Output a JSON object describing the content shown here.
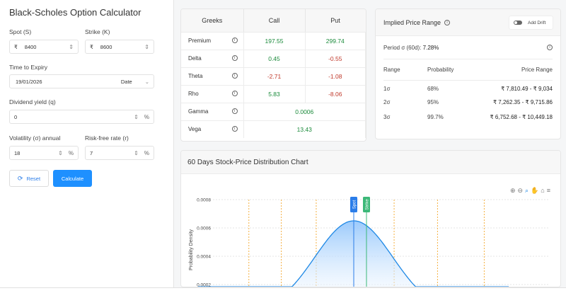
{
  "calculator": {
    "title": "Black-Scholes Option Calculator",
    "spot": {
      "label": "Spot (S)",
      "currency": "₹",
      "value": "8400"
    },
    "strike": {
      "label": "Strike (K)",
      "currency": "₹",
      "value": "8600"
    },
    "expiry": {
      "label": "Time to Expiry",
      "value": "19/01/2026",
      "mode": "Date"
    },
    "dividend": {
      "label": "Dividend yield (q)",
      "value": "0",
      "unit": "%"
    },
    "volatility": {
      "label": "Volatility (σ) annual",
      "value": "18",
      "unit": "%"
    },
    "rate": {
      "label": "Risk-free rate (r)",
      "value": "7",
      "unit": "%"
    },
    "reset_label": "Reset",
    "calculate_label": "Calculate"
  },
  "greeks": {
    "headers": [
      "Greeks",
      "Call",
      "Put"
    ],
    "rows": [
      {
        "name": "Premium",
        "call": "197.55",
        "put": "299.74"
      },
      {
        "name": "Delta",
        "call": "0.45",
        "put": "-0.55"
      },
      {
        "name": "Theta",
        "call": "-2.71",
        "put": "-1.08"
      },
      {
        "name": "Rho",
        "call": "5.83",
        "put": "-8.06"
      },
      {
        "name": "Gamma",
        "both": "0.0006"
      },
      {
        "name": "Vega",
        "both": "13.43"
      }
    ]
  },
  "implied_range": {
    "title": "Implied Price Range",
    "drift_label": "Add Drift",
    "drift_on": false,
    "period_label": "Period σ (60d):",
    "period_value": "7.28%",
    "headers": [
      "Range",
      "Probability",
      "Price Range"
    ],
    "rows": [
      {
        "range": "1σ",
        "prob": "68%",
        "price": "₹ 7,810.49 - ₹ 9,034"
      },
      {
        "range": "2σ",
        "prob": "95%",
        "price": "₹ 7,262.35 - ₹ 9,715.86"
      },
      {
        "range": "3σ",
        "prob": "99.7%",
        "price": "₹ 6,752.68 - ₹ 10,449.18"
      }
    ]
  },
  "chart": {
    "title": "60 Days Stock-Price Distribution Chart",
    "ylabel": "Probability Density",
    "spot_label": "Spot",
    "strike_label": "Strike",
    "colors": {
      "curve": "#1e88e5",
      "spot": "#2b7de9",
      "strike": "#3cb878",
      "sigma": "#f5b041"
    }
  },
  "chart_data": {
    "type": "area",
    "title": "60 Days Stock-Price Distribution Chart",
    "ylabel": "Probability Density",
    "yticks": [
      "0.0008",
      "0.0006",
      "0.0004",
      "0.0002"
    ],
    "ylim": [
      0,
      0.0008
    ],
    "mean": 8400,
    "sigma": 611.5,
    "peak_density": 0.00065,
    "spot": 8400,
    "strike": 8600,
    "sigma_bounds": [
      6752.68,
      7262.35,
      7810.49,
      9034,
      9715.86,
      10449.18
    ],
    "grid": true
  }
}
